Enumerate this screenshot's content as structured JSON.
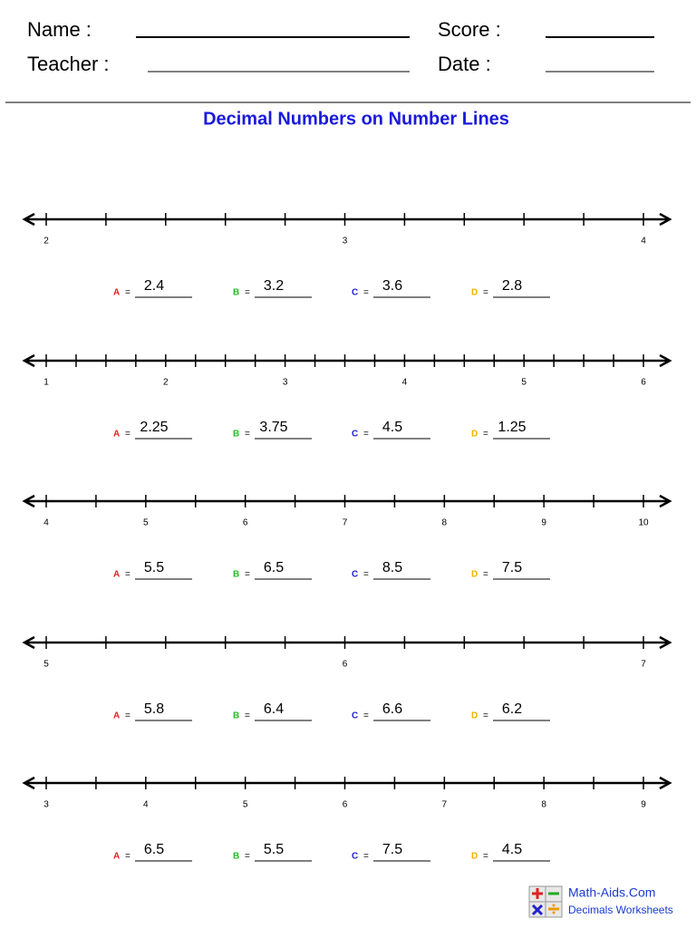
{
  "header": {
    "name_label": "Name :",
    "teacher_label": "Teacher :",
    "score_label": "Score :",
    "date_label": "Date :"
  },
  "title": "Decimal Numbers on Number Lines",
  "number_lines": [
    {
      "labels": [
        "2",
        "3",
        "4"
      ],
      "answers": [
        {
          "letter": "A",
          "sign": "=",
          "value": "2.4"
        },
        {
          "letter": "B",
          "sign": "=",
          "value": "3.2"
        },
        {
          "letter": "C",
          "sign": "=",
          "value": "3.6"
        },
        {
          "letter": "D",
          "sign": "=",
          "value": "2.8"
        }
      ]
    },
    {
      "labels": [
        "1",
        "2",
        "3",
        "4",
        "5",
        "6"
      ],
      "answers": [
        {
          "letter": "A",
          "sign": "=",
          "value": "2.25"
        },
        {
          "letter": "B",
          "sign": "=",
          "value": "3.75"
        },
        {
          "letter": "C",
          "sign": "=",
          "value": "4.5"
        },
        {
          "letter": "D",
          "sign": "=",
          "value": "1.25"
        }
      ]
    },
    {
      "labels": [
        "4",
        "5",
        "6",
        "7",
        "8",
        "9",
        "10"
      ],
      "answers": [
        {
          "letter": "A",
          "sign": "=",
          "value": "5.5"
        },
        {
          "letter": "B",
          "sign": "=",
          "value": "6.5"
        },
        {
          "letter": "C",
          "sign": "=",
          "value": "8.5"
        },
        {
          "letter": "D",
          "sign": "=",
          "value": "7.5"
        }
      ]
    },
    {
      "labels": [
        "5",
        "6",
        "7"
      ],
      "answers": [
        {
          "letter": "A",
          "sign": "=",
          "value": "5.8"
        },
        {
          "letter": "B",
          "sign": "=",
          "value": "6.4"
        },
        {
          "letter": "C",
          "sign": "=",
          "value": "6.6"
        },
        {
          "letter": "D",
          "sign": "=",
          "value": "6.2"
        }
      ]
    },
    {
      "labels": [
        "3",
        "4",
        "5",
        "6",
        "7",
        "8",
        "9"
      ],
      "answers": [
        {
          "letter": "A",
          "sign": "=",
          "value": "6.5"
        },
        {
          "letter": "B",
          "sign": "=",
          "value": "5.5"
        },
        {
          "letter": "C",
          "sign": "=",
          "value": "7.5"
        },
        {
          "letter": "D",
          "sign": "=",
          "value": "4.5"
        }
      ]
    }
  ],
  "footer": {
    "site": "Math-Aids.Com",
    "subtitle": "Decimals Worksheets"
  }
}
